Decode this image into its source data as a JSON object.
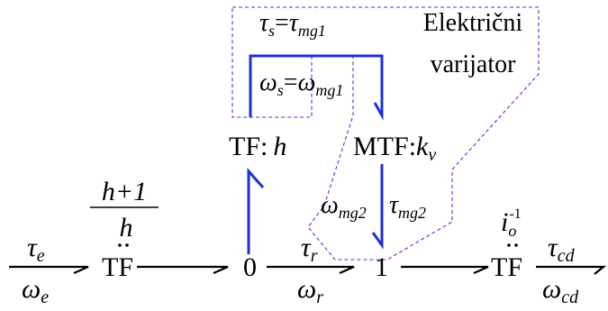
{
  "region_label": {
    "line1": "Električni",
    "line2": "varijator"
  },
  "elements": {
    "tf_left": "TF",
    "zero_junction": "0",
    "one_junction": "1",
    "tf_right": "TF",
    "tf_h": {
      "name": "TF",
      "sep": ":",
      "param": "h"
    },
    "mtf_kv": {
      "name": "MTF",
      "sep": ":",
      "param_base": "k",
      "param_sub": "v"
    }
  },
  "ratio_left": {
    "numerator": "h+1",
    "denominator": "h"
  },
  "ratio_right": {
    "base": "i",
    "sub": "o",
    "sup": "-1"
  },
  "signals": {
    "tau_e": {
      "base": "τ",
      "sub": "e"
    },
    "omega_e": {
      "base": "ω",
      "sub": "e"
    },
    "tau_r": {
      "base": "τ",
      "sub": "r"
    },
    "omega_r": {
      "base": "ω",
      "sub": "r"
    },
    "tau_cd": {
      "base": "τ",
      "sub": "cd"
    },
    "omega_cd": {
      "base": "ω",
      "sub": "cd"
    },
    "omega_mg2": {
      "base": "ω",
      "sub": "mg2"
    },
    "tau_mg2": {
      "base": "τ",
      "sub": "mg2"
    },
    "tau_s_eq": {
      "lhs_base": "τ",
      "lhs_sub": "s",
      "eq": "=",
      "rhs_base": "τ",
      "rhs_sub": "mg1"
    },
    "omega_s_eq": {
      "lhs_base": "ω",
      "lhs_sub": "s",
      "eq": "=",
      "rhs_base": "ω",
      "rhs_sub": "mg1"
    }
  },
  "colors": {
    "bond": "#000000",
    "electric_bond": "#1f2fd6",
    "region_border": "#3344cc"
  }
}
